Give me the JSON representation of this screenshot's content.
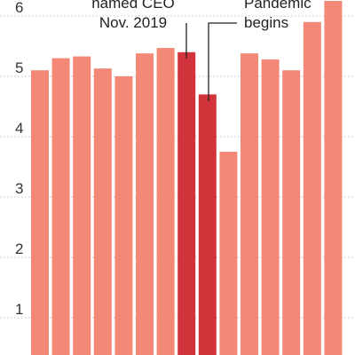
{
  "chart_data": {
    "type": "bar",
    "title": "",
    "xlabel": "",
    "ylabel": "",
    "ylim": [
      0.5,
      6.2
    ],
    "y_ticks": [
      1,
      2,
      3,
      4,
      5,
      6
    ],
    "grid": true,
    "values": [
      5.1,
      5.3,
      5.33,
      5.13,
      5.0,
      5.38,
      5.47,
      5.4,
      4.7,
      3.75,
      5.38,
      5.28,
      5.1,
      5.9,
      6.25
    ],
    "colors": {
      "bar": "#f48877",
      "highlight": "#d2333b"
    },
    "highlight_indices": [
      7,
      8
    ],
    "annotations": [
      {
        "lines": [
          "named CEO",
          "Nov. 2019"
        ],
        "bar_index": 7
      },
      {
        "lines": [
          "Pandemic",
          "begins"
        ],
        "bar_index": 8
      }
    ]
  }
}
